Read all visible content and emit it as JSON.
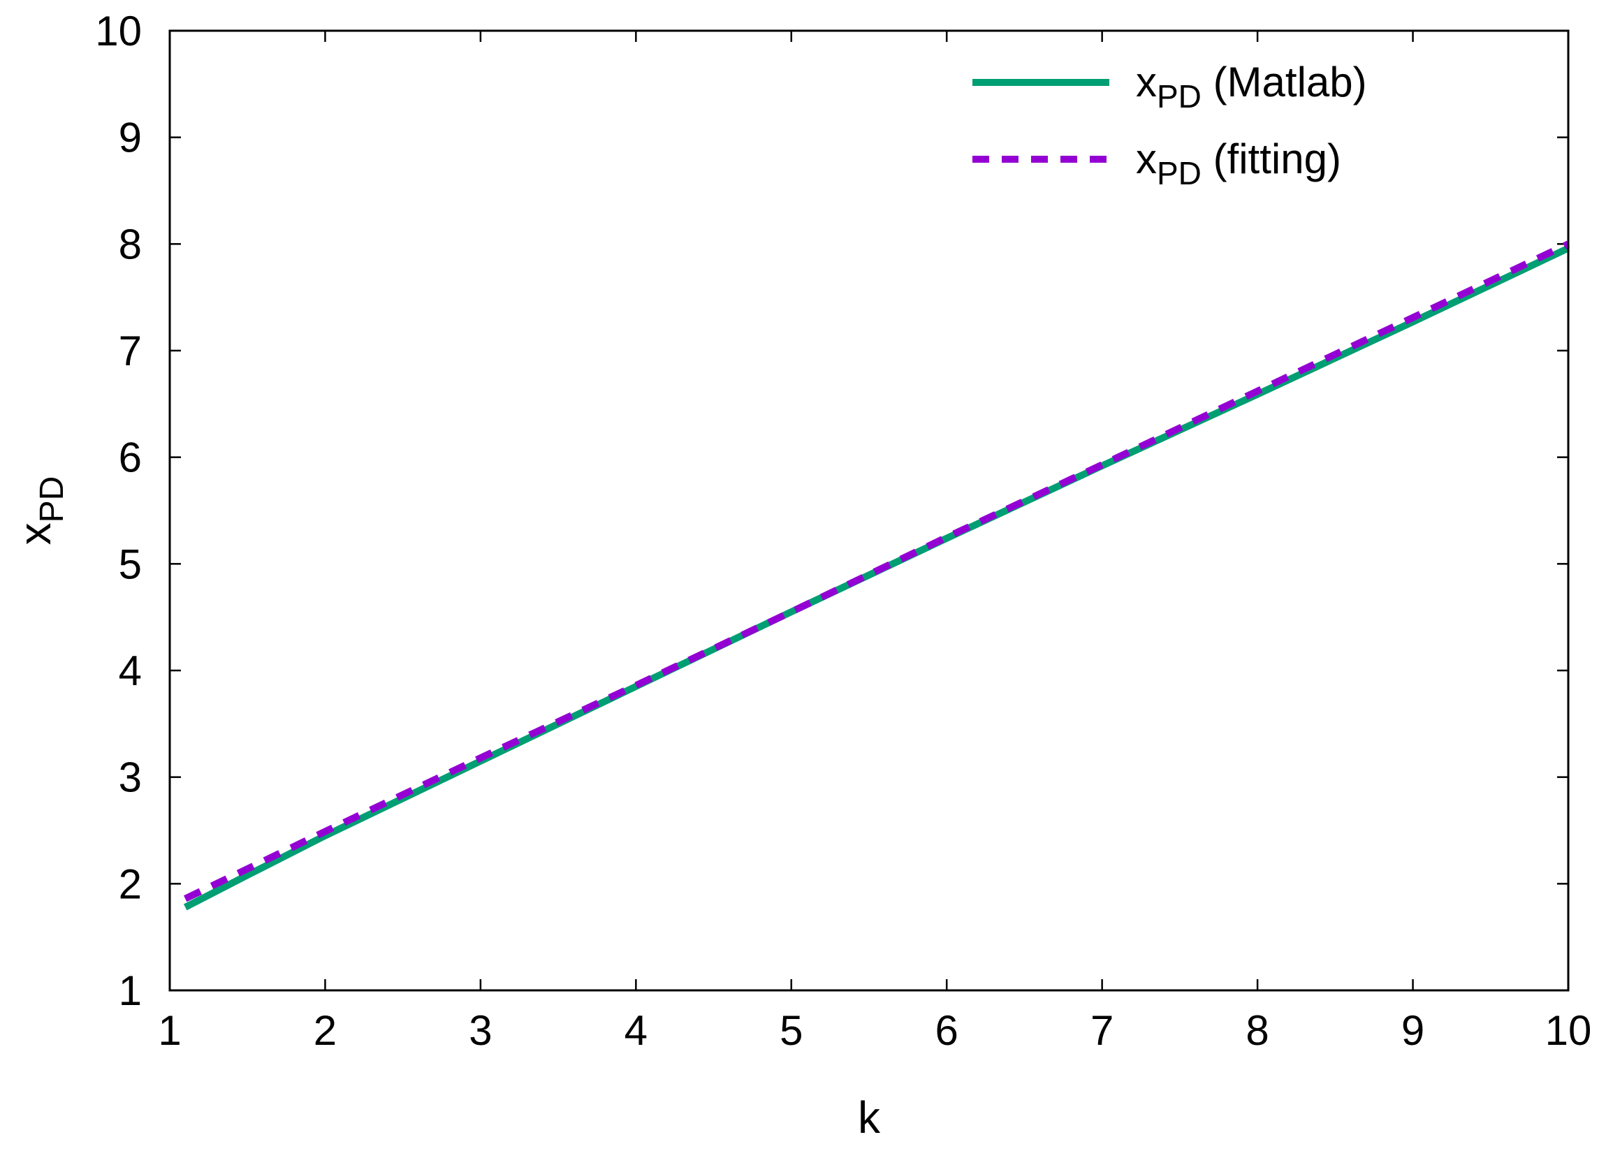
{
  "chart_data": {
    "type": "line",
    "xlabel": "k",
    "ylabel": {
      "base": "x",
      "sub": "PD"
    },
    "xlim": [
      1,
      10
    ],
    "ylim": [
      1,
      10
    ],
    "xticks": [
      "1",
      "2",
      "3",
      "4",
      "5",
      "6",
      "7",
      "8",
      "9",
      "10"
    ],
    "yticks": [
      "1",
      "2",
      "3",
      "4",
      "5",
      "6",
      "7",
      "8",
      "9",
      "10"
    ],
    "grid": false,
    "legend_position": "top-right",
    "series": [
      {
        "name": {
          "base": "x",
          "sub": "PD",
          "suffix": " (Matlab)"
        },
        "color": "#009e73",
        "style": "solid",
        "x": [
          1.1,
          1.5,
          2,
          3,
          4,
          5,
          6,
          7,
          8,
          9,
          10
        ],
        "y": [
          1.78,
          2.08,
          2.45,
          3.15,
          3.85,
          4.55,
          5.24,
          5.92,
          6.59,
          7.27,
          7.96
        ]
      },
      {
        "name": {
          "base": "x",
          "sub": "PD",
          "suffix": " (fitting)"
        },
        "color": "#9400d3",
        "style": "dashed",
        "x": [
          1.1,
          1.5,
          2,
          3,
          4,
          5,
          6,
          7,
          8,
          9,
          10
        ],
        "y": [
          1.86,
          2.14,
          2.49,
          3.18,
          3.86,
          4.55,
          5.25,
          5.93,
          6.62,
          7.31,
          8.0
        ]
      }
    ]
  }
}
